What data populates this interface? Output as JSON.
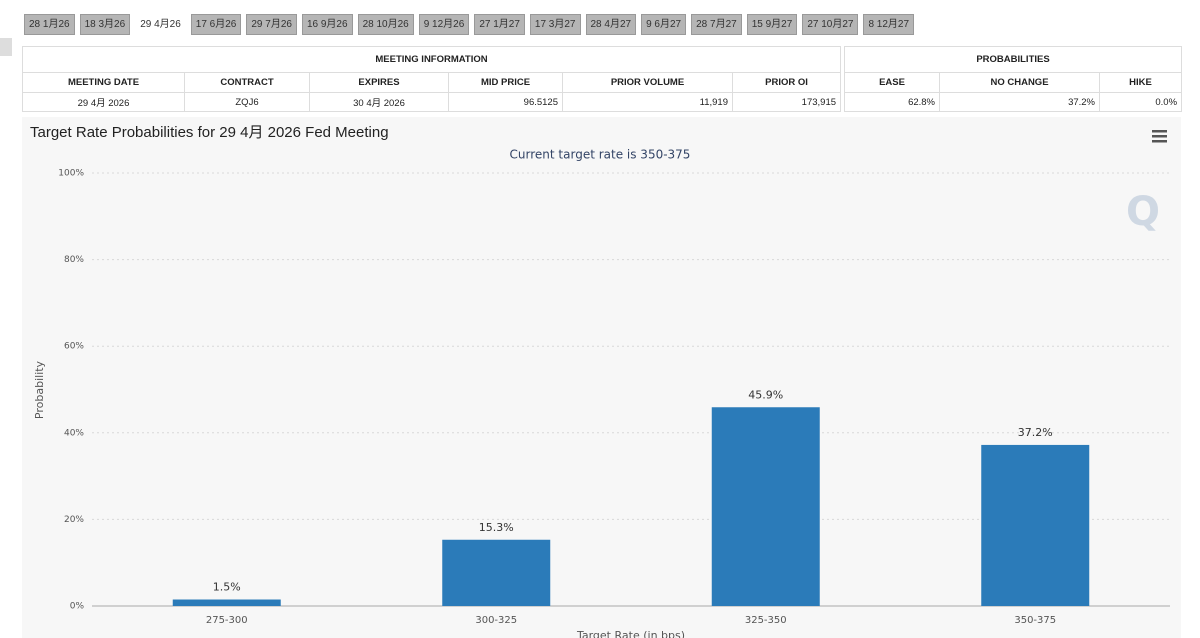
{
  "tabs": [
    "28 1月26",
    "18 3月26",
    "29 4月26",
    "17 6月26",
    "29 7月26",
    "16 9月26",
    "28 10月26",
    "9 12月26",
    "27 1月27",
    "17 3月27",
    "28 4月27",
    "9 6月27",
    "28 7月27",
    "15 9月27",
    "27 10月27",
    "8 12月27"
  ],
  "meeting_information": {
    "title": "MEETING INFORMATION",
    "headers": [
      "MEETING DATE",
      "CONTRACT",
      "EXPIRES",
      "MID PRICE",
      "PRIOR VOLUME",
      "PRIOR OI"
    ],
    "rows": [
      [
        "29 4月 2026",
        "ZQJ6",
        "30 4月 2026",
        "96.5125",
        "11,919",
        "173,915"
      ]
    ]
  },
  "probabilities": {
    "title": "PROBABILITIES",
    "headers": [
      "EASE",
      "NO CHANGE",
      "HIKE"
    ],
    "rows": [
      [
        "62.8%",
        "37.2%",
        "0.0%"
      ]
    ]
  },
  "chart_data": {
    "type": "bar",
    "title": "Target Rate Probabilities for 29 4月 2026 Fed Meeting",
    "subtitle": "Current target rate is 350-375",
    "x_label": "Target Rate (in bps)",
    "y_label": "Probability",
    "categories": [
      "275-300",
      "300-325",
      "325-350",
      "350-375"
    ],
    "values": [
      1.5,
      15.3,
      45.9,
      37.2
    ],
    "value_labels": [
      "1.5%",
      "15.3%",
      "45.9%",
      "37.2%"
    ],
    "color": "#2b7bb9",
    "ylim": [
      0,
      100
    ],
    "yticks": [
      {
        "value": 0,
        "label": "0%"
      },
      {
        "value": 20,
        "label": "20%"
      },
      {
        "value": 40,
        "label": "40%"
      },
      {
        "value": 60,
        "label": "60%"
      },
      {
        "value": 80,
        "label": "80%"
      },
      {
        "value": 100,
        "label": "100%"
      }
    ],
    "grid": true
  }
}
